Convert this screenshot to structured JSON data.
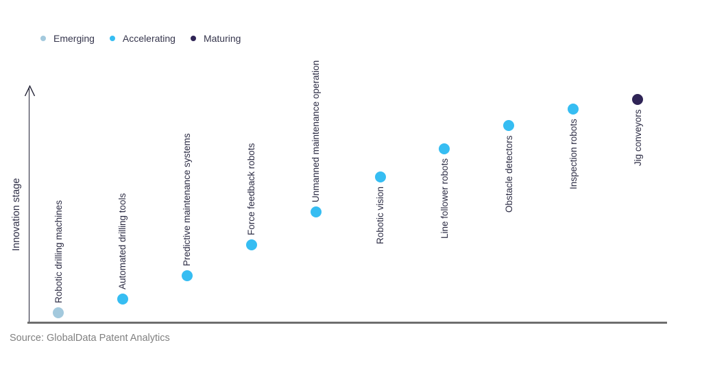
{
  "legend": {
    "items": [
      {
        "label": "Emerging",
        "stage_key": "emerging"
      },
      {
        "label": "Accelerating",
        "stage_key": "accelerating"
      },
      {
        "label": "Maturing",
        "stage_key": "maturing"
      }
    ]
  },
  "colors": {
    "emerging": "#A3C9DD",
    "accelerating": "#36BDF2",
    "maturing": "#2F2456",
    "label_text": "#2C2C44",
    "axis_y": "#212134",
    "axis_x": "#6E6E6E",
    "source_text": "#808080"
  },
  "source_note": "Source: GlobalData Patent Analytics",
  "chart_data": {
    "type": "scatter",
    "title": "",
    "xlabel": "",
    "ylabel": "Innovation stage",
    "legend_position": "top-left",
    "y_axis_numeric": false,
    "y_axis_range_note": "qualitative innovation-stage axis with upward arrow, no ticks or gridlines",
    "points": [
      {
        "label": "Robotic drilling machines",
        "stage": "Emerging",
        "level": 0.04,
        "label_position": "above"
      },
      {
        "label": "Automated drilling tools",
        "stage": "Accelerating",
        "level": 0.1,
        "label_position": "above"
      },
      {
        "label": "Predictive maintenance systems",
        "stage": "Accelerating",
        "level": 0.2,
        "label_position": "above"
      },
      {
        "label": "Force feedback robots",
        "stage": "Accelerating",
        "level": 0.33,
        "label_position": "above"
      },
      {
        "label": "Unmanned maintenance operation",
        "stage": "Accelerating",
        "level": 0.47,
        "label_position": "above"
      },
      {
        "label": "Robotic vision",
        "stage": "Accelerating",
        "level": 0.62,
        "label_position": "below"
      },
      {
        "label": "Line follower robots",
        "stage": "Accelerating",
        "level": 0.74,
        "label_position": "below"
      },
      {
        "label": "Obstacle detectors",
        "stage": "Accelerating",
        "level": 0.84,
        "label_position": "below"
      },
      {
        "label": "Inspection robots",
        "stage": "Accelerating",
        "level": 0.91,
        "label_position": "below"
      },
      {
        "label": "Jig conveyors",
        "stage": "Maturing",
        "level": 0.95,
        "label_position": "below"
      }
    ]
  }
}
